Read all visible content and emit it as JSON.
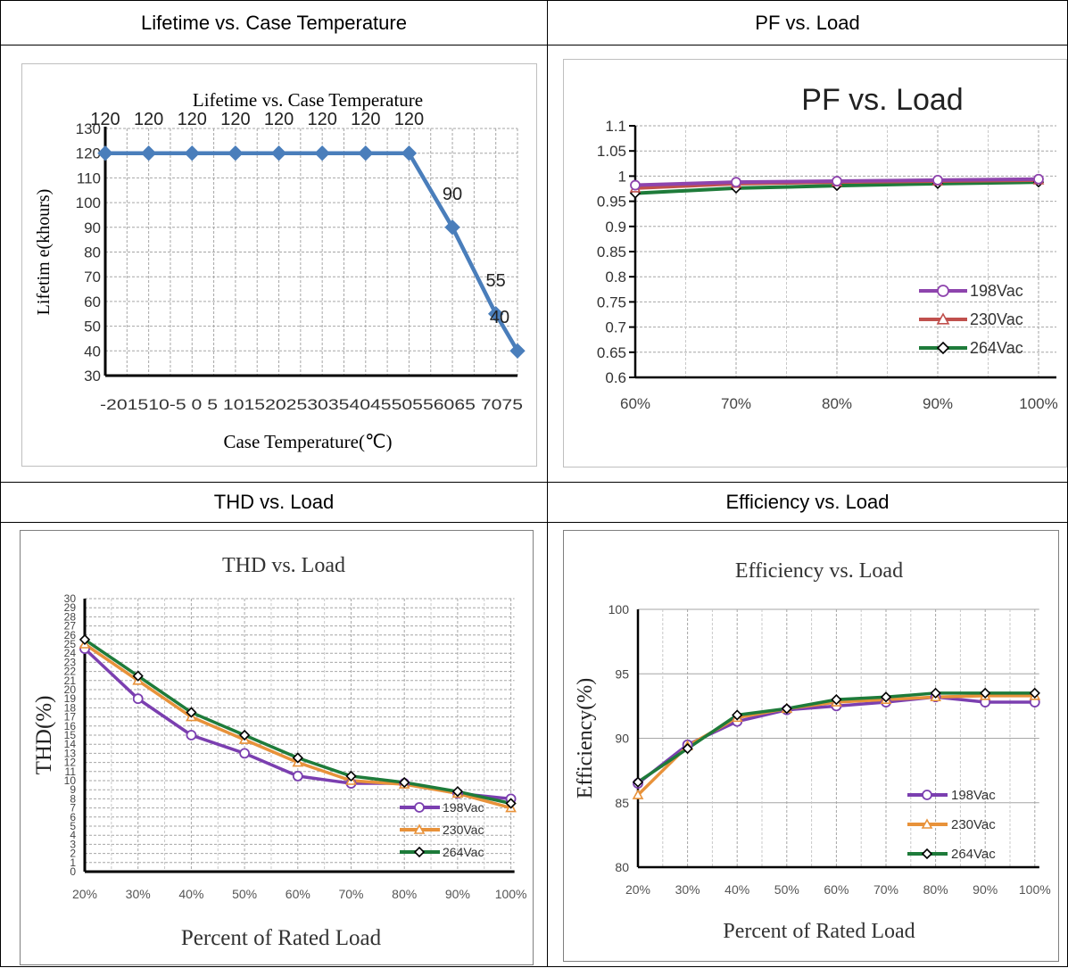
{
  "headers": {
    "lifetime": "Lifetime vs. Case Temperature",
    "pf": "PF vs. Load",
    "thd": "THD vs. Load",
    "eff": "Efficiency vs. Load"
  },
  "chart_data": [
    {
      "id": "lifetime",
      "type": "line",
      "title": "Lifetime vs. Case Temperature",
      "xlabel": "Case Temperature(℃)",
      "ylabel": "Lifetim e(khours)",
      "x_ticks": [
        "-20",
        "15",
        "10",
        "-5",
        "0",
        "5",
        "10",
        "15",
        "20",
        "25",
        "30",
        "35",
        "40",
        "45",
        "50",
        "55",
        "60",
        "65",
        "70",
        "75"
      ],
      "x_tick_labels_raw": "-201510-5 0 5 101520253035404550556065 7075",
      "ylim": [
        30,
        130
      ],
      "y_ticks": [
        30,
        40,
        50,
        60,
        70,
        80,
        90,
        100,
        110,
        120,
        130
      ],
      "x": [
        -20,
        -10,
        0,
        10,
        20,
        30,
        40,
        50,
        60,
        70,
        75
      ],
      "y": [
        120,
        120,
        120,
        120,
        120,
        120,
        120,
        120,
        90,
        55,
        40
      ],
      "data_labels": [
        "120",
        "120",
        "120",
        "120",
        "120",
        "120",
        "120",
        "120",
        "90",
        "55",
        "40"
      ],
      "color": "#4a7ebb",
      "grid": true
    },
    {
      "id": "pf",
      "type": "line",
      "title": "PF vs. Load",
      "xlabel": "",
      "ylabel": "",
      "categories": [
        "60%",
        "70%",
        "80%",
        "90%",
        "100%"
      ],
      "ylim": [
        0.6,
        1.1
      ],
      "y_ticks": [
        "0.6",
        "0.65",
        "0.7",
        "0.75",
        "0.8",
        "0.85",
        "0.9",
        "0.95",
        "1",
        "1.05",
        "1.1"
      ],
      "series": [
        {
          "name": "198Vac",
          "values": [
            0.982,
            0.988,
            0.99,
            0.992,
            0.994
          ],
          "color": "#8e44ad",
          "marker": "circle"
        },
        {
          "name": "230Vac",
          "values": [
            0.976,
            0.985,
            0.988,
            0.99,
            0.992
          ],
          "color": "#c0504d",
          "marker": "triangle"
        },
        {
          "name": "264Vac",
          "values": [
            0.966,
            0.976,
            0.981,
            0.985,
            0.988
          ],
          "color": "#1e7b3a",
          "marker": "diamond"
        }
      ],
      "legend": "right",
      "grid": true
    },
    {
      "id": "thd",
      "type": "line",
      "title": "THD vs. Load",
      "xlabel": "Percent of Rated Load",
      "ylabel": "THD(%)",
      "categories": [
        "20%",
        "30%",
        "40%",
        "50%",
        "60%",
        "70%",
        "80%",
        "90%",
        "100%"
      ],
      "ylim": [
        0,
        30
      ],
      "y_ticks": [
        0,
        1,
        2,
        3,
        4,
        5,
        6,
        7,
        8,
        9,
        10,
        11,
        12,
        13,
        14,
        15,
        16,
        17,
        18,
        19,
        20,
        21,
        22,
        23,
        24,
        25,
        26,
        27,
        28,
        29,
        30
      ],
      "series": [
        {
          "name": "198Vac",
          "values": [
            24.5,
            19,
            15,
            13,
            10.5,
            9.7,
            9.7,
            8.6,
            8.0
          ],
          "color": "#7b3fb0",
          "marker": "circle"
        },
        {
          "name": "230Vac",
          "values": [
            25,
            21,
            17,
            14.5,
            12,
            10,
            9.6,
            8.6,
            7.0
          ],
          "color": "#e8923a",
          "marker": "triangle"
        },
        {
          "name": "264Vac",
          "values": [
            25.5,
            21.5,
            17.5,
            15,
            12.5,
            10.5,
            9.8,
            8.8,
            7.5
          ],
          "color": "#1e7b3a",
          "marker": "diamond"
        }
      ],
      "legend": "bottom-right",
      "grid": true
    },
    {
      "id": "eff",
      "type": "line",
      "title": "Efficiency vs. Load",
      "xlabel": "Percent of Rated Load",
      "ylabel": "Efficiency(%)",
      "categories": [
        "20%",
        "30%",
        "40%",
        "50%",
        "60%",
        "70%",
        "80%",
        "90%",
        "100%"
      ],
      "ylim": [
        80,
        100
      ],
      "y_ticks": [
        80,
        85,
        90,
        95,
        100
      ],
      "series": [
        {
          "name": "198Vac",
          "values": [
            86.5,
            89.5,
            91.3,
            92.2,
            92.5,
            92.8,
            93.2,
            92.8,
            92.8
          ],
          "color": "#7b3fb0",
          "marker": "circle"
        },
        {
          "name": "230Vac",
          "values": [
            85.6,
            89.4,
            91.6,
            92.3,
            92.8,
            93.0,
            93.2,
            93.3,
            93.3
          ],
          "color": "#e8923a",
          "marker": "triangle"
        },
        {
          "name": "264Vac",
          "values": [
            86.6,
            89.2,
            91.8,
            92.3,
            93.0,
            93.2,
            93.5,
            93.5,
            93.5
          ],
          "color": "#1e7b3a",
          "marker": "diamond"
        }
      ],
      "legend": "bottom-right",
      "grid": true
    }
  ]
}
